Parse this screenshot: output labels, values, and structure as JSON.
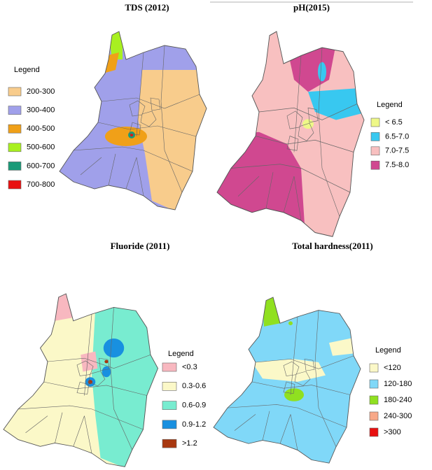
{
  "panels": [
    {
      "title": "TDS (2012)",
      "legend_title": "Legend",
      "legend": [
        {
          "label": "200-300",
          "color": "#f8cc8c"
        },
        {
          "label": "300-400",
          "color": "#a0a0ea"
        },
        {
          "label": "400-500",
          "color": "#f0a018"
        },
        {
          "label": "500-600",
          "color": "#a8f020"
        },
        {
          "label": "600-700",
          "color": "#1a9a78"
        },
        {
          "label": "700-800",
          "color": "#e81010"
        }
      ]
    },
    {
      "title": "pH(2015)",
      "legend_title": "Legend",
      "legend": [
        {
          "label": "< 6.5",
          "color": "#eef888"
        },
        {
          "label": "6.5-7.0",
          "color": "#38c8f0"
        },
        {
          "label": "7.0-7.5",
          "color": "#f8c0c0"
        },
        {
          "label": "7.5-8.0",
          "color": "#d04890"
        }
      ]
    },
    {
      "title": "Fluoride (2011)",
      "legend_title": "Legend",
      "legend": [
        {
          "label": "<0.3",
          "color": "#f8b8c0"
        },
        {
          "label": "0.3-0.6",
          "color": "#fbf8c8"
        },
        {
          "label": "0.6-0.9",
          "color": "#78ecd0"
        },
        {
          "label": "0.9-1.2",
          "color": "#1890e0"
        },
        {
          "label": ">1.2",
          "color": "#a83810"
        }
      ]
    },
    {
      "title": "Total hardness(2011)",
      "legend_title": "Legend",
      "legend": [
        {
          "label": "<120",
          "color": "#fbf8c8"
        },
        {
          "label": "120-180",
          "color": "#80d8f8"
        },
        {
          "label": "180-240",
          "color": "#90e020"
        },
        {
          "label": "240-300",
          "color": "#f8a888"
        },
        {
          "label": ">300",
          "color": "#e81010"
        }
      ]
    }
  ]
}
